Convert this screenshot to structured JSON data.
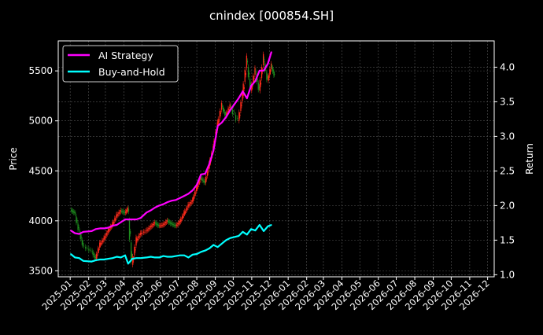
{
  "chart_data": {
    "type": "line",
    "title": "cnindex [000854.SH]",
    "ylabel": "Price",
    "y2label": "Return",
    "ylim": [
      3440,
      5800
    ],
    "y2lim": [
      0.97,
      4.38
    ],
    "xlim": [
      "2024-12-12",
      "2026-12-12"
    ],
    "yticks": [
      3500,
      4000,
      4500,
      5000,
      5500
    ],
    "y2ticks": [
      "1.0",
      "1.5",
      "2.0",
      "2.5",
      "3.0",
      "3.5",
      "4.0"
    ],
    "xticks": [
      "2025-01",
      "2025-02",
      "2025-03",
      "2025-04",
      "2025-05",
      "2025-06",
      "2025-07",
      "2025-08",
      "2025-09",
      "2025-10",
      "2025-11",
      "2025-12",
      "2026-01",
      "2026-02",
      "2026-03",
      "2026-04",
      "2026-05",
      "2026-06",
      "2026-07",
      "2026-08",
      "2026-09",
      "2026-10",
      "2026-11",
      "2026-12"
    ],
    "grid": true,
    "legend": {
      "position": "top-left",
      "entries": [
        "AI Strategy",
        "Buy-and-Hold"
      ]
    },
    "colors": {
      "background": "#000000",
      "up": "#ff2a1a",
      "down": "#1e8c1e",
      "ai_strategy": "#ff00ff",
      "buy_and_hold": "#00ffff"
    },
    "x": [
      "2025-01-02",
      "2025-01-09",
      "2025-01-16",
      "2025-01-23",
      "2025-02-06",
      "2025-02-13",
      "2025-02-20",
      "2025-02-27",
      "2025-03-06",
      "2025-03-13",
      "2025-03-20",
      "2025-03-27",
      "2025-04-03",
      "2025-04-08",
      "2025-04-15",
      "2025-04-22",
      "2025-04-29",
      "2025-05-09",
      "2025-05-16",
      "2025-05-23",
      "2025-05-30",
      "2025-06-06",
      "2025-06-13",
      "2025-06-20",
      "2025-06-27",
      "2025-07-04",
      "2025-07-11",
      "2025-07-18",
      "2025-07-25",
      "2025-08-01",
      "2025-08-08",
      "2025-08-15",
      "2025-08-22",
      "2025-08-29",
      "2025-09-05",
      "2025-09-12",
      "2025-09-19",
      "2025-09-26",
      "2025-10-10",
      "2025-10-17",
      "2025-10-24",
      "2025-10-31",
      "2025-11-07",
      "2025-11-14",
      "2025-11-21",
      "2025-11-28",
      "2025-12-04"
    ],
    "series": [
      {
        "name": "Price",
        "axis": "left",
        "values": [
          4080,
          3900,
          3750,
          3700,
          3620,
          3760,
          3820,
          3900,
          3960,
          4050,
          4100,
          4080,
          4120,
          3560,
          3800,
          3870,
          3900,
          3940,
          3980,
          3950,
          3960,
          4000,
          3970,
          3950,
          3990,
          4070,
          4150,
          4200,
          4320,
          4430,
          4380,
          4550,
          4720,
          4950,
          5150,
          5050,
          5150,
          5000,
          5250,
          5600,
          5300,
          5500,
          5300,
          5620,
          5400,
          5550,
          5450
        ]
      },
      {
        "name": "AI Strategy",
        "axis": "right",
        "values": [
          1.64,
          1.6,
          1.59,
          1.62,
          1.63,
          1.66,
          1.67,
          1.67,
          1.68,
          1.71,
          1.72,
          1.76,
          1.8,
          1.8,
          1.8,
          1.8,
          1.82,
          1.9,
          1.93,
          1.97,
          2.0,
          2.02,
          2.05,
          2.07,
          2.08,
          2.11,
          2.14,
          2.17,
          2.22,
          2.3,
          2.45,
          2.46,
          2.6,
          2.8,
          3.15,
          3.2,
          3.28,
          3.38,
          3.55,
          3.65,
          3.55,
          3.73,
          3.8,
          3.95,
          3.95,
          4.05,
          4.22
        ]
      },
      {
        "name": "Buy-and-Hold",
        "axis": "right",
        "values": [
          1.3,
          1.25,
          1.24,
          1.2,
          1.19,
          1.21,
          1.22,
          1.22,
          1.23,
          1.24,
          1.26,
          1.25,
          1.28,
          1.16,
          1.23,
          1.24,
          1.24,
          1.25,
          1.26,
          1.25,
          1.25,
          1.27,
          1.26,
          1.26,
          1.27,
          1.28,
          1.28,
          1.25,
          1.29,
          1.3,
          1.33,
          1.35,
          1.38,
          1.43,
          1.4,
          1.45,
          1.5,
          1.53,
          1.56,
          1.62,
          1.58,
          1.66,
          1.64,
          1.72,
          1.63,
          1.7,
          1.72
        ]
      }
    ]
  }
}
